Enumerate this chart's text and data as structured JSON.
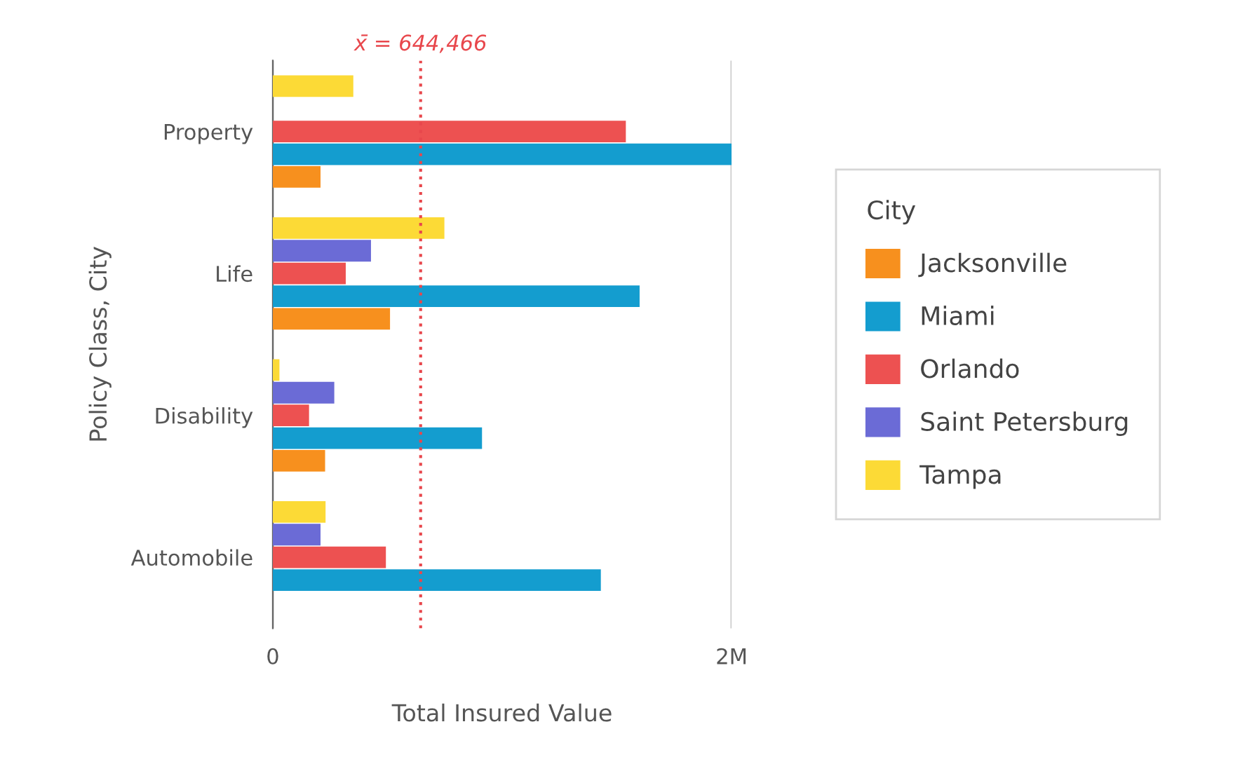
{
  "chart_data": {
    "type": "bar",
    "orientation": "horizontal",
    "xlabel": "Total Insured Value",
    "ylabel": "Policy Class, City",
    "legend_title": "City",
    "categories": [
      "Property",
      "Life",
      "Disability",
      "Automobile"
    ],
    "series": [
      {
        "name": "Jacksonville",
        "color": "#f7901e",
        "values": [
          208000,
          511000,
          228000,
          null
        ]
      },
      {
        "name": "Miami",
        "color": "#149dcf",
        "values": [
          2000000,
          1599000,
          912000,
          1430000
        ]
      },
      {
        "name": "Orlando",
        "color": "#ed5151",
        "values": [
          1539000,
          318000,
          158000,
          493000
        ]
      },
      {
        "name": "Saint Petersburg",
        "color": "#6b6bd6",
        "values": [
          null,
          428000,
          268000,
          208000
        ]
      },
      {
        "name": "Tampa",
        "color": "#fcda36",
        "values": [
          351000,
          748000,
          29000,
          230000
        ]
      }
    ],
    "xlim": [
      0,
      2000000
    ],
    "xticks": [
      0,
      {
        "value": 2000000,
        "label": "2M"
      }
    ],
    "ref_lines": [
      {
        "axis": "x",
        "value": 644466,
        "label": "x̄ = 644,466",
        "color": "#e8474c",
        "line_style": "dotted"
      }
    ],
    "grid": "x",
    "legend": "right"
  }
}
